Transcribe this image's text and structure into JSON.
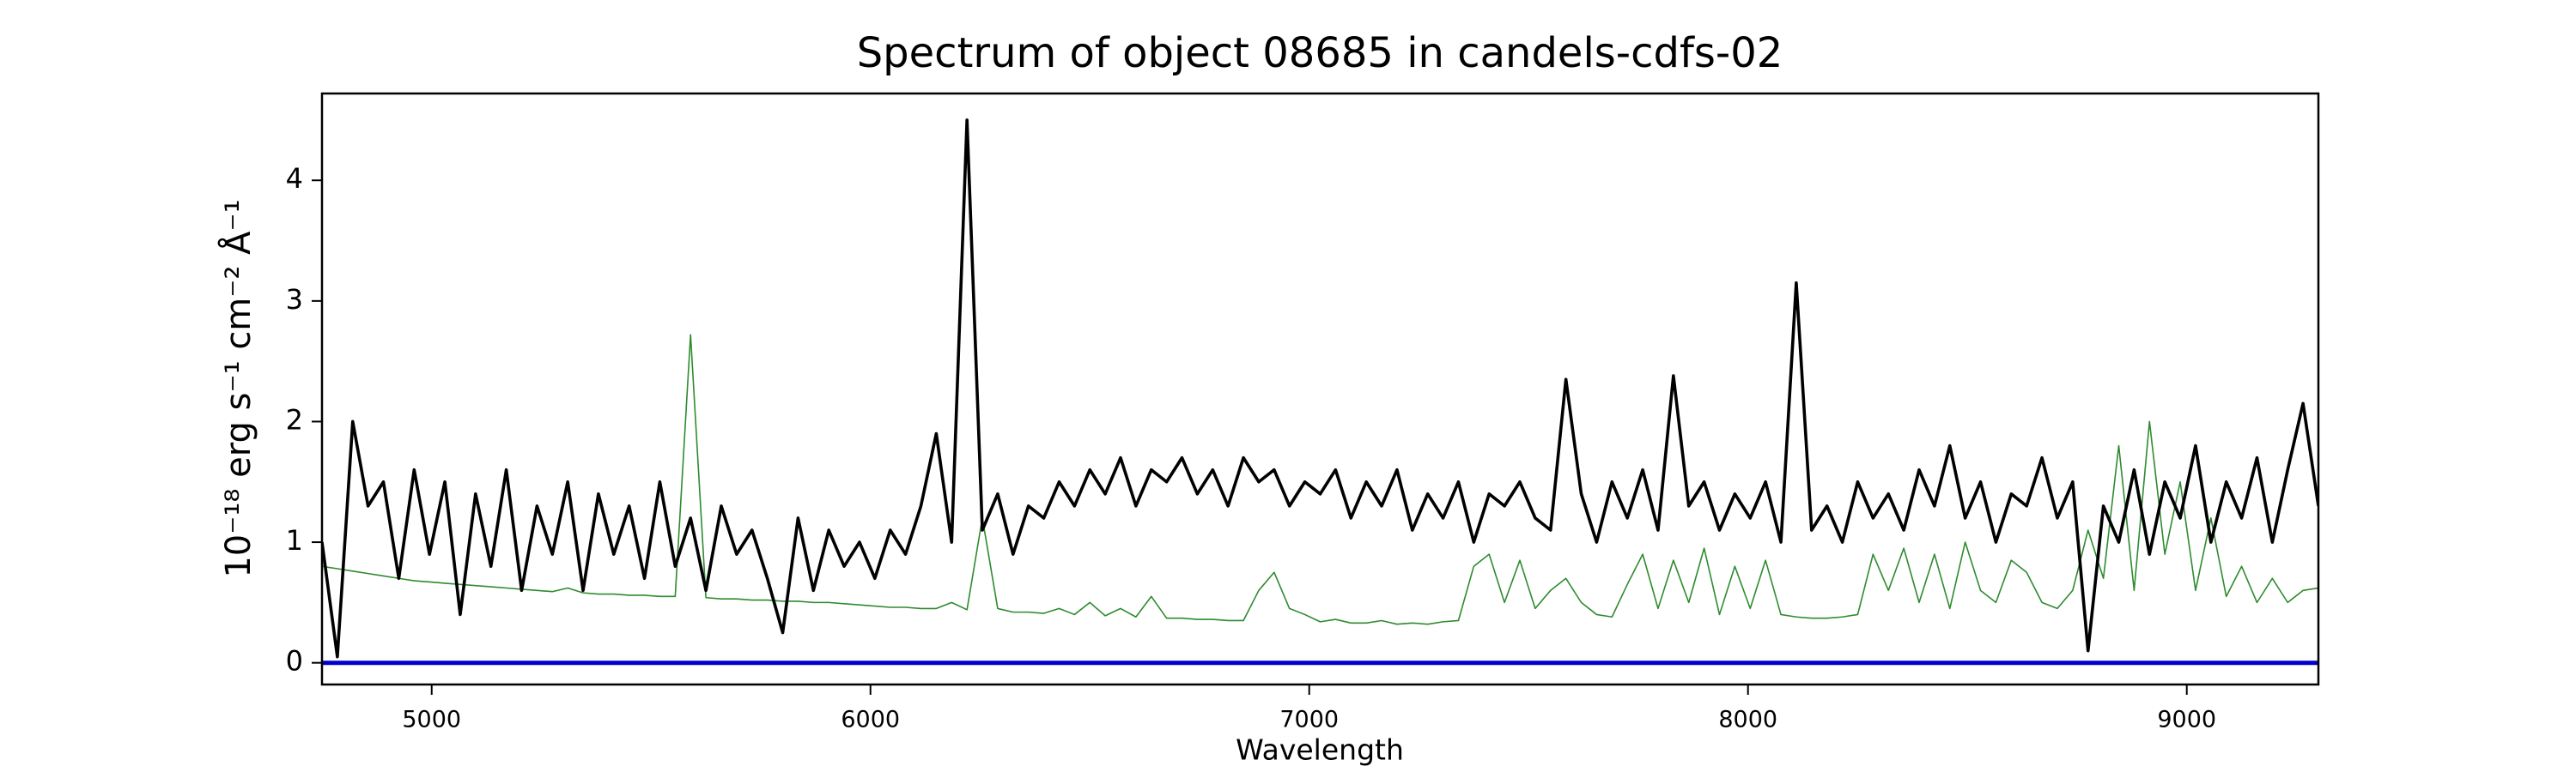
{
  "chart_data": {
    "type": "line",
    "title": "Spectrum of object 08685 in candels-cdfs-02",
    "xlabel": "Wavelength",
    "ylabel": "10⁻¹⁸ erg s⁻¹ cm⁻² Å⁻¹",
    "xlim": [
      4750,
      9300
    ],
    "ylim": [
      -0.18,
      4.72
    ],
    "xticks": [
      5000,
      6000,
      7000,
      8000,
      9000
    ],
    "yticks": [
      0,
      1,
      2,
      3,
      4
    ],
    "grid": false,
    "x": [
      4750,
      4785,
      4820,
      4855,
      4890,
      4925,
      4960,
      4995,
      5030,
      5065,
      5100,
      5135,
      5170,
      5205,
      5240,
      5275,
      5310,
      5345,
      5380,
      5415,
      5450,
      5485,
      5520,
      5555,
      5590,
      5625,
      5660,
      5695,
      5730,
      5765,
      5800,
      5835,
      5870,
      5905,
      5940,
      5975,
      6010,
      6045,
      6080,
      6115,
      6150,
      6185,
      6220,
      6255,
      6290,
      6325,
      6360,
      6395,
      6430,
      6465,
      6500,
      6535,
      6570,
      6605,
      6640,
      6675,
      6710,
      6745,
      6780,
      6815,
      6850,
      6885,
      6920,
      6955,
      6990,
      7025,
      7060,
      7095,
      7130,
      7165,
      7200,
      7235,
      7270,
      7305,
      7340,
      7375,
      7410,
      7445,
      7480,
      7515,
      7550,
      7585,
      7620,
      7655,
      7690,
      7725,
      7760,
      7795,
      7830,
      7865,
      7900,
      7935,
      7970,
      8005,
      8040,
      8075,
      8110,
      8145,
      8180,
      8215,
      8250,
      8285,
      8320,
      8355,
      8390,
      8425,
      8460,
      8495,
      8530,
      8565,
      8600,
      8635,
      8670,
      8705,
      8740,
      8775,
      8810,
      8845,
      8880,
      8915,
      8950,
      8985,
      9020,
      9055,
      9090,
      9125,
      9160,
      9195,
      9230,
      9265,
      9300
    ],
    "series": [
      {
        "color": "#2e8b2e",
        "width": 1.6,
        "values": [
          0.8,
          0.78,
          0.76,
          0.74,
          0.72,
          0.7,
          0.68,
          0.67,
          0.66,
          0.65,
          0.64,
          0.63,
          0.62,
          0.61,
          0.6,
          0.59,
          0.62,
          0.58,
          0.57,
          0.57,
          0.56,
          0.56,
          0.55,
          0.55,
          2.72,
          0.54,
          0.53,
          0.53,
          0.52,
          0.52,
          0.51,
          0.51,
          0.5,
          0.5,
          0.49,
          0.48,
          0.47,
          0.46,
          0.46,
          0.45,
          0.45,
          0.5,
          0.44,
          1.2,
          0.45,
          0.42,
          0.42,
          0.41,
          0.45,
          0.4,
          0.5,
          0.39,
          0.45,
          0.38,
          0.55,
          0.37,
          0.37,
          0.36,
          0.36,
          0.35,
          0.35,
          0.6,
          0.75,
          0.45,
          0.4,
          0.34,
          0.36,
          0.33,
          0.33,
          0.35,
          0.32,
          0.33,
          0.32,
          0.34,
          0.35,
          0.8,
          0.9,
          0.5,
          0.85,
          0.45,
          0.6,
          0.7,
          0.5,
          0.4,
          0.38,
          0.65,
          0.9,
          0.45,
          0.85,
          0.5,
          0.95,
          0.4,
          0.8,
          0.45,
          0.85,
          0.4,
          0.38,
          0.37,
          0.37,
          0.38,
          0.4,
          0.9,
          0.6,
          0.95,
          0.5,
          0.9,
          0.45,
          1.0,
          0.6,
          0.5,
          0.85,
          0.75,
          0.5,
          0.45,
          0.6,
          1.1,
          0.7,
          1.8,
          0.6,
          2.0,
          0.9,
          1.5,
          0.6,
          1.2,
          0.55,
          0.8,
          0.5,
          0.7,
          0.5,
          0.6,
          0.62
        ]
      },
      {
        "color": "#000000",
        "width": 3.6,
        "values": [
          1.0,
          0.05,
          2.0,
          1.3,
          1.5,
          0.7,
          1.6,
          0.9,
          1.5,
          0.4,
          1.4,
          0.8,
          1.6,
          0.6,
          1.3,
          0.9,
          1.5,
          0.6,
          1.4,
          0.9,
          1.3,
          0.7,
          1.5,
          0.8,
          1.2,
          0.6,
          1.3,
          0.9,
          1.1,
          0.7,
          0.25,
          1.2,
          0.6,
          1.1,
          0.8,
          1.0,
          0.7,
          1.1,
          0.9,
          1.3,
          1.9,
          1.0,
          4.5,
          1.1,
          1.4,
          0.9,
          1.3,
          1.2,
          1.5,
          1.3,
          1.6,
          1.4,
          1.7,
          1.3,
          1.6,
          1.5,
          1.7,
          1.4,
          1.6,
          1.3,
          1.7,
          1.5,
          1.6,
          1.3,
          1.5,
          1.4,
          1.6,
          1.2,
          1.5,
          1.3,
          1.6,
          1.1,
          1.4,
          1.2,
          1.5,
          1.0,
          1.4,
          1.3,
          1.5,
          1.2,
          1.1,
          2.35,
          1.4,
          1.0,
          1.5,
          1.2,
          1.6,
          1.1,
          2.38,
          1.3,
          1.5,
          1.1,
          1.4,
          1.2,
          1.5,
          1.0,
          3.15,
          1.1,
          1.3,
          1.0,
          1.5,
          1.2,
          1.4,
          1.1,
          1.6,
          1.3,
          1.8,
          1.2,
          1.5,
          1.0,
          1.4,
          1.3,
          1.7,
          1.2,
          1.5,
          0.1,
          1.3,
          1.0,
          1.6,
          0.9,
          1.5,
          1.2,
          1.8,
          1.0,
          1.5,
          1.2,
          1.7,
          1.0,
          1.6,
          2.15,
          1.3
        ]
      },
      {
        "color": "#0000cc",
        "width": 5,
        "x": [
          4750,
          9300
        ],
        "values": [
          0,
          0
        ]
      }
    ]
  }
}
